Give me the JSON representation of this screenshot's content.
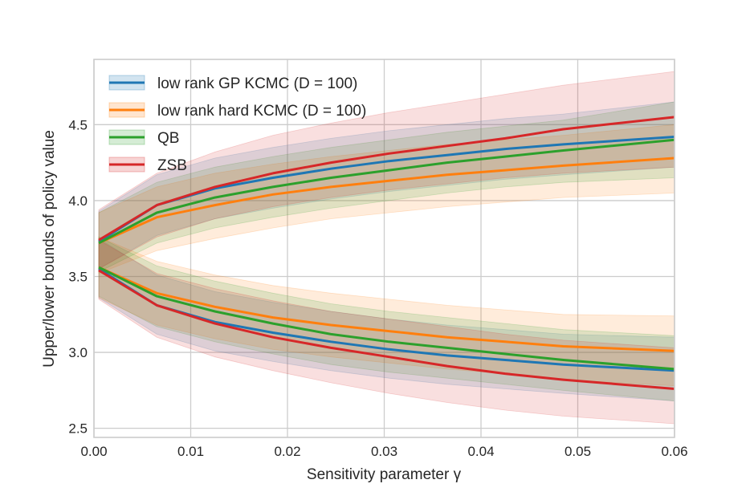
{
  "chart_data": {
    "type": "line",
    "title": "",
    "xlabel": "Sensitivity parameter γ",
    "ylabel": "Upper/lower bounds of policy value",
    "xlim": [
      0.0,
      0.06
    ],
    "ylim": [
      2.44,
      4.93
    ],
    "x_ticks": [
      0.0,
      0.01,
      0.02,
      0.03,
      0.04,
      0.05,
      0.06
    ],
    "x_tick_labels": [
      "0.00",
      "0.01",
      "0.02",
      "0.03",
      "0.04",
      "0.05",
      "0.06"
    ],
    "y_ticks": [
      2.5,
      3.0,
      3.5,
      4.0,
      4.5
    ],
    "y_tick_labels": [
      "2.5",
      "3.0",
      "3.5",
      "4.0",
      "4.5"
    ],
    "grid": true,
    "legend_position": "top-left",
    "x": [
      0.0005,
      0.0065,
      0.0125,
      0.0185,
      0.0245,
      0.0305,
      0.0365,
      0.0425,
      0.0485,
      0.06
    ],
    "series": [
      {
        "name": "low rank GP KCMC (D = 100)",
        "color": "#1f77b4",
        "upper": [
          3.73,
          3.97,
          4.08,
          4.15,
          4.21,
          4.26,
          4.3,
          4.34,
          4.37,
          4.42
        ],
        "upper_band": [
          [
            3.55,
            3.93
          ],
          [
            3.77,
            4.17
          ],
          [
            3.88,
            4.28
          ],
          [
            3.95,
            4.35
          ],
          [
            4.01,
            4.41
          ],
          [
            4.06,
            4.46
          ],
          [
            4.1,
            4.5
          ],
          [
            4.14,
            4.54
          ],
          [
            4.17,
            4.57
          ],
          [
            4.22,
            4.65
          ]
        ],
        "lower": [
          3.55,
          3.31,
          3.2,
          3.13,
          3.07,
          3.02,
          2.98,
          2.95,
          2.92,
          2.88
        ],
        "lower_band": [
          [
            3.36,
            3.75
          ],
          [
            3.12,
            3.51
          ],
          [
            3.01,
            3.4
          ],
          [
            2.94,
            3.33
          ],
          [
            2.88,
            3.27
          ],
          [
            2.83,
            3.22
          ],
          [
            2.79,
            3.18
          ],
          [
            2.76,
            3.15
          ],
          [
            2.73,
            3.12
          ],
          [
            2.68,
            3.1
          ]
        ]
      },
      {
        "name": "low rank hard KCMC (D = 100)",
        "color": "#ff7f0e",
        "upper": [
          3.72,
          3.89,
          3.97,
          4.04,
          4.09,
          4.13,
          4.17,
          4.2,
          4.23,
          4.28
        ],
        "upper_band": [
          [
            3.52,
            3.92
          ],
          [
            3.67,
            4.09
          ],
          [
            3.75,
            4.18
          ],
          [
            3.82,
            4.24
          ],
          [
            3.88,
            4.29
          ],
          [
            3.92,
            4.33
          ],
          [
            3.96,
            4.37
          ],
          [
            3.99,
            4.4
          ],
          [
            4.02,
            4.43
          ],
          [
            4.05,
            4.5
          ]
        ],
        "lower": [
          3.56,
          3.39,
          3.3,
          3.23,
          3.18,
          3.14,
          3.1,
          3.07,
          3.04,
          3.01
        ],
        "lower_band": [
          [
            3.36,
            3.76
          ],
          [
            3.18,
            3.6
          ],
          [
            3.09,
            3.51
          ],
          [
            3.02,
            3.44
          ],
          [
            2.97,
            3.39
          ],
          [
            2.93,
            3.35
          ],
          [
            2.89,
            3.31
          ],
          [
            2.86,
            3.28
          ],
          [
            2.82,
            3.25
          ],
          [
            2.78,
            3.24
          ]
        ]
      },
      {
        "name": "QB",
        "color": "#2ca02c",
        "upper": [
          3.72,
          3.92,
          4.02,
          4.09,
          4.15,
          4.2,
          4.25,
          4.29,
          4.33,
          4.4
        ],
        "upper_band": [
          [
            3.53,
            3.92
          ],
          [
            3.72,
            4.12
          ],
          [
            3.82,
            4.22
          ],
          [
            3.89,
            4.29
          ],
          [
            3.95,
            4.35
          ],
          [
            4.0,
            4.4
          ],
          [
            4.05,
            4.45
          ],
          [
            4.09,
            4.49
          ],
          [
            4.12,
            4.53
          ],
          [
            4.15,
            4.65
          ]
        ],
        "lower": [
          3.56,
          3.37,
          3.27,
          3.19,
          3.12,
          3.07,
          3.03,
          2.99,
          2.95,
          2.89
        ],
        "lower_band": [
          [
            3.37,
            3.76
          ],
          [
            3.17,
            3.57
          ],
          [
            3.07,
            3.47
          ],
          [
            2.99,
            3.39
          ],
          [
            2.92,
            3.32
          ],
          [
            2.87,
            3.27
          ],
          [
            2.83,
            3.23
          ],
          [
            2.79,
            3.19
          ],
          [
            2.75,
            3.15
          ],
          [
            2.68,
            3.11
          ]
        ]
      },
      {
        "name": "ZSB",
        "color": "#d62728",
        "upper": [
          3.74,
          3.97,
          4.09,
          4.18,
          4.25,
          4.31,
          4.36,
          4.41,
          4.47,
          4.55
        ],
        "upper_band": [
          [
            3.55,
            3.94
          ],
          [
            3.76,
            4.18
          ],
          [
            3.88,
            4.32
          ],
          [
            3.96,
            4.43
          ],
          [
            4.02,
            4.51
          ],
          [
            4.07,
            4.58
          ],
          [
            4.11,
            4.64
          ],
          [
            4.15,
            4.7
          ],
          [
            4.18,
            4.76
          ],
          [
            4.22,
            4.85
          ]
        ],
        "lower": [
          3.54,
          3.31,
          3.19,
          3.1,
          3.03,
          2.97,
          2.91,
          2.86,
          2.82,
          2.76
        ],
        "lower_band": [
          [
            3.35,
            3.74
          ],
          [
            3.1,
            3.52
          ],
          [
            2.97,
            3.42
          ],
          [
            2.88,
            3.34
          ],
          [
            2.8,
            3.27
          ],
          [
            2.73,
            3.22
          ],
          [
            2.67,
            3.17
          ],
          [
            2.62,
            3.12
          ],
          [
            2.58,
            3.08
          ],
          [
            2.53,
            3.03
          ]
        ]
      }
    ]
  }
}
